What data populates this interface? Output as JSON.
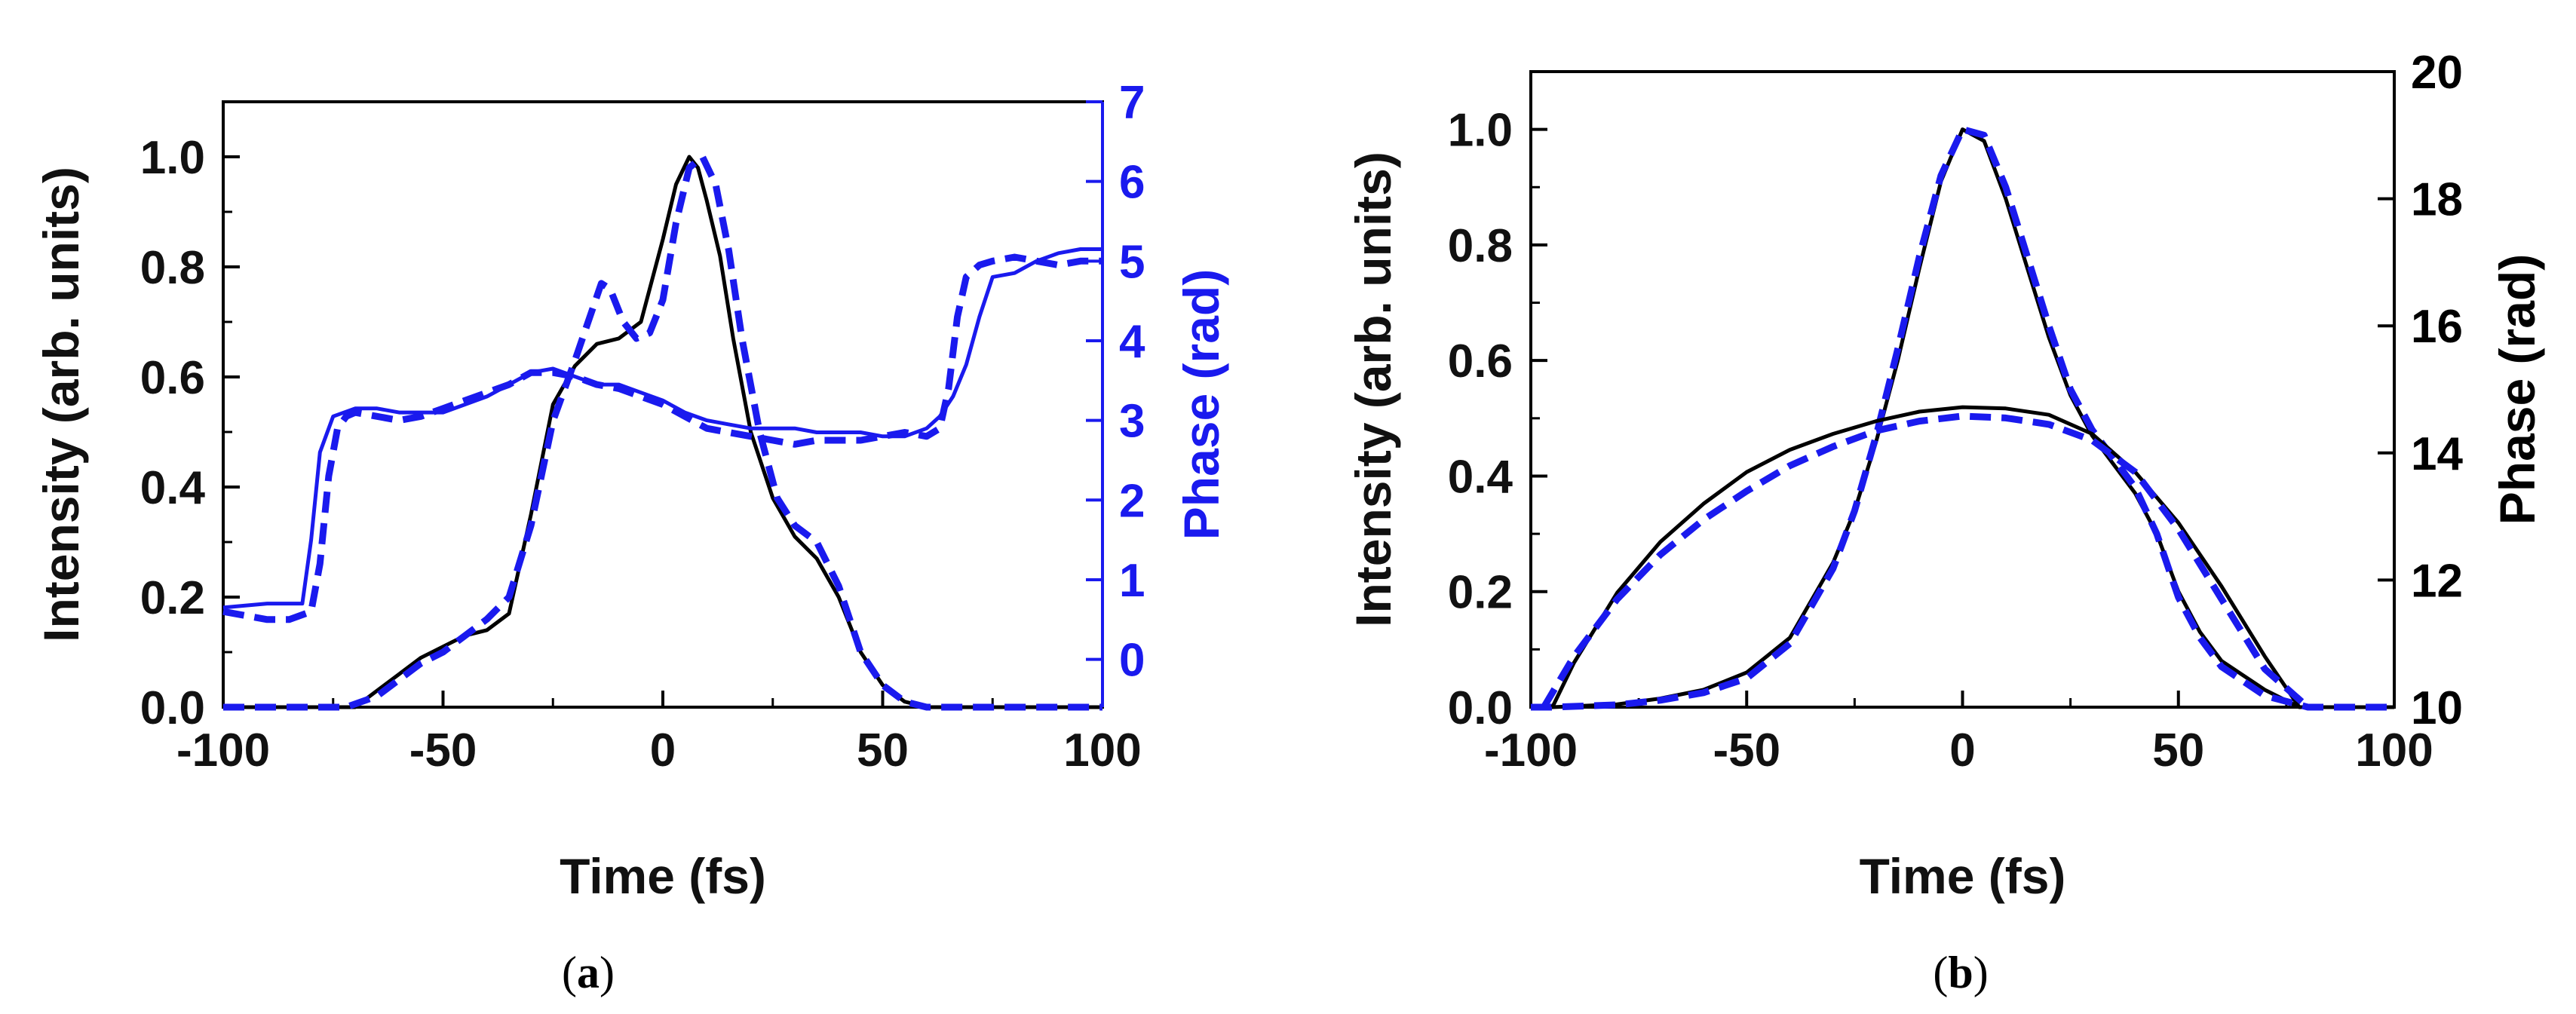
{
  "colors": {
    "measured": "#000000",
    "retrieved": "#1a1aee",
    "axis": "#000000",
    "phase_axis_a": "#1a1aee"
  },
  "chart_data": [
    {
      "id": "a",
      "type": "line",
      "caption": "a",
      "xlabel": "Time (fs)",
      "ylabel": "Intensity (arb. units)",
      "y2label": "Phase (rad)",
      "xlim": [
        -100,
        100
      ],
      "ylim": [
        0,
        1.1
      ],
      "y2lim": [
        -0.6,
        7
      ],
      "xticks": [
        "-100",
        "-50",
        "0",
        "50",
        "100"
      ],
      "xtick_values": [
        -100,
        -50,
        0,
        50,
        100
      ],
      "yticks": [
        "0.0",
        "0.2",
        "0.4",
        "0.6",
        "0.8",
        "1.0"
      ],
      "ytick_values": [
        0,
        0.2,
        0.4,
        0.6,
        0.8,
        1.0
      ],
      "y2ticks": [
        "0",
        "1",
        "2",
        "3",
        "4",
        "5",
        "6",
        "7"
      ],
      "y2tick_values": [
        0,
        1,
        2,
        3,
        4,
        5,
        6,
        7
      ],
      "series": [
        {
          "name": "Intensity (solid)",
          "axis": "left",
          "style": "solid",
          "color": "measured",
          "x": [
            -100,
            -75,
            -70,
            -65,
            -60,
            -55,
            -50,
            -45,
            -40,
            -35,
            -30,
            -25,
            -20,
            -15,
            -10,
            -5,
            0,
            3,
            6,
            8,
            10,
            13,
            16,
            20,
            25,
            30,
            35,
            40,
            45,
            50,
            55,
            60,
            65,
            70,
            100
          ],
          "y": [
            0,
            0,
            0,
            0.03,
            0.06,
            0.09,
            0.11,
            0.13,
            0.14,
            0.17,
            0.35,
            0.55,
            0.62,
            0.66,
            0.67,
            0.7,
            0.85,
            0.95,
            1.0,
            0.98,
            0.92,
            0.82,
            0.67,
            0.5,
            0.38,
            0.31,
            0.27,
            0.2,
            0.1,
            0.04,
            0.01,
            0,
            0,
            0,
            0
          ]
        },
        {
          "name": "Intensity (dashed)",
          "axis": "left",
          "style": "dashed",
          "color": "retrieved",
          "x": [
            -100,
            -72,
            -65,
            -60,
            -55,
            -50,
            -45,
            -40,
            -35,
            -30,
            -25,
            -20,
            -17,
            -14,
            -12,
            -9,
            -6,
            -3,
            0,
            3,
            6,
            9,
            12,
            15,
            18,
            22,
            26,
            30,
            35,
            40,
            45,
            50,
            55,
            60,
            65,
            100
          ],
          "y": [
            0,
            0,
            0.02,
            0.05,
            0.08,
            0.1,
            0.13,
            0.16,
            0.2,
            0.33,
            0.52,
            0.63,
            0.7,
            0.77,
            0.76,
            0.7,
            0.67,
            0.68,
            0.74,
            0.88,
            0.98,
            1.0,
            0.95,
            0.83,
            0.67,
            0.5,
            0.38,
            0.33,
            0.3,
            0.22,
            0.1,
            0.04,
            0.01,
            0,
            0,
            0
          ]
        },
        {
          "name": "Phase (solid)",
          "axis": "right",
          "style": "solid",
          "color": "retrieved",
          "x": [
            -100,
            -90,
            -85,
            -82,
            -80,
            -78,
            -75,
            -70,
            -65,
            -60,
            -55,
            -50,
            -45,
            -40,
            -35,
            -30,
            -25,
            -20,
            -15,
            -10,
            -5,
            0,
            5,
            10,
            15,
            20,
            25,
            30,
            35,
            40,
            45,
            50,
            55,
            60,
            63,
            66,
            69,
            72,
            75,
            80,
            85,
            90,
            95,
            100
          ],
          "y": [
            0.65,
            0.7,
            0.7,
            0.7,
            1.5,
            2.6,
            3.05,
            3.15,
            3.15,
            3.1,
            3.1,
            3.1,
            3.2,
            3.3,
            3.45,
            3.6,
            3.65,
            3.55,
            3.45,
            3.45,
            3.35,
            3.25,
            3.1,
            3.0,
            2.95,
            2.9,
            2.9,
            2.9,
            2.85,
            2.85,
            2.85,
            2.8,
            2.8,
            2.9,
            3.05,
            3.3,
            3.7,
            4.3,
            4.8,
            4.85,
            5.0,
            5.1,
            5.15,
            5.15
          ]
        },
        {
          "name": "Phase (dashed)",
          "axis": "right",
          "style": "dashed",
          "color": "retrieved",
          "x": [
            -100,
            -95,
            -90,
            -85,
            -80,
            -78,
            -76,
            -74,
            -72,
            -70,
            -65,
            -60,
            -55,
            -50,
            -45,
            -40,
            -35,
            -30,
            -25,
            -20,
            -15,
            -10,
            -5,
            0,
            5,
            10,
            15,
            20,
            25,
            30,
            35,
            40,
            45,
            50,
            55,
            60,
            63,
            65,
            67,
            69,
            72,
            75,
            80,
            85,
            90,
            95,
            100
          ],
          "y": [
            0.6,
            0.55,
            0.5,
            0.5,
            0.6,
            1.2,
            2.3,
            2.9,
            3.05,
            3.1,
            3.05,
            3.0,
            3.05,
            3.15,
            3.25,
            3.35,
            3.45,
            3.6,
            3.6,
            3.55,
            3.45,
            3.4,
            3.3,
            3.2,
            3.05,
            2.9,
            2.85,
            2.8,
            2.75,
            2.7,
            2.75,
            2.75,
            2.75,
            2.8,
            2.85,
            2.8,
            2.9,
            3.4,
            4.3,
            4.8,
            4.95,
            5.0,
            5.05,
            5.0,
            4.95,
            5.0,
            5.0
          ]
        }
      ]
    },
    {
      "id": "b",
      "type": "line",
      "caption": "b",
      "xlabel": "Time (fs)",
      "ylabel": "Intensity (arb. units)",
      "y2label": "Phase (rad)",
      "xlim": [
        -100,
        100
      ],
      "ylim": [
        0,
        1.1
      ],
      "y2lim": [
        10,
        20
      ],
      "xticks": [
        "-100",
        "-50",
        "0",
        "50",
        "100"
      ],
      "xtick_values": [
        -100,
        -50,
        0,
        50,
        100
      ],
      "yticks": [
        "0.0",
        "0.2",
        "0.4",
        "0.6",
        "0.8",
        "1.0"
      ],
      "ytick_values": [
        0,
        0.2,
        0.4,
        0.6,
        0.8,
        1.0
      ],
      "y2ticks": [
        "10",
        "12",
        "14",
        "16",
        "18",
        "20"
      ],
      "y2tick_values": [
        10,
        12,
        14,
        16,
        18,
        20
      ],
      "series": [
        {
          "name": "Intensity (solid)",
          "axis": "left",
          "style": "solid",
          "color": "measured",
          "x": [
            -100,
            -95,
            -80,
            -70,
            -60,
            -50,
            -40,
            -30,
            -25,
            -20,
            -15,
            -10,
            -5,
            0,
            5,
            10,
            15,
            20,
            25,
            30,
            35,
            40,
            45,
            50,
            55,
            60,
            70,
            78,
            100
          ],
          "y": [
            0,
            0,
            0.005,
            0.015,
            0.03,
            0.06,
            0.12,
            0.25,
            0.34,
            0.46,
            0.6,
            0.76,
            0.91,
            1.0,
            0.98,
            0.88,
            0.76,
            0.64,
            0.54,
            0.47,
            0.42,
            0.37,
            0.3,
            0.2,
            0.13,
            0.08,
            0.03,
            0,
            0
          ]
        },
        {
          "name": "Intensity (dashed)",
          "axis": "left",
          "style": "dashed",
          "color": "retrieved",
          "x": [
            -100,
            -95,
            -80,
            -70,
            -60,
            -50,
            -40,
            -30,
            -25,
            -20,
            -15,
            -10,
            -5,
            0,
            5,
            10,
            15,
            20,
            25,
            30,
            35,
            40,
            45,
            50,
            55,
            60,
            70,
            80,
            100
          ],
          "y": [
            0,
            0,
            0.004,
            0.012,
            0.025,
            0.05,
            0.11,
            0.24,
            0.34,
            0.47,
            0.62,
            0.78,
            0.92,
            1.0,
            0.99,
            0.9,
            0.78,
            0.66,
            0.55,
            0.48,
            0.43,
            0.38,
            0.3,
            0.19,
            0.12,
            0.07,
            0.02,
            0,
            0
          ]
        },
        {
          "name": "Phase (solid)",
          "axis": "right",
          "style": "solid",
          "color": "measured",
          "x": [
            -95,
            -90,
            -80,
            -70,
            -60,
            -50,
            -40,
            -30,
            -20,
            -10,
            0,
            10,
            20,
            30,
            40,
            50,
            60,
            70,
            78
          ],
          "y": [
            10.0,
            10.7,
            11.8,
            12.6,
            13.2,
            13.7,
            14.05,
            14.3,
            14.5,
            14.65,
            14.72,
            14.7,
            14.6,
            14.3,
            13.7,
            12.9,
            11.9,
            10.8,
            10.0
          ]
        },
        {
          "name": "Phase (dashed)",
          "axis": "right",
          "style": "dashed",
          "color": "retrieved",
          "x": [
            -97,
            -90,
            -80,
            -70,
            -60,
            -50,
            -40,
            -30,
            -20,
            -10,
            0,
            10,
            20,
            30,
            40,
            50,
            60,
            70,
            80
          ],
          "y": [
            10.0,
            10.8,
            11.7,
            12.4,
            12.95,
            13.4,
            13.8,
            14.1,
            14.35,
            14.5,
            14.58,
            14.55,
            14.45,
            14.2,
            13.7,
            12.8,
            11.7,
            10.6,
            10.0
          ]
        }
      ]
    }
  ]
}
